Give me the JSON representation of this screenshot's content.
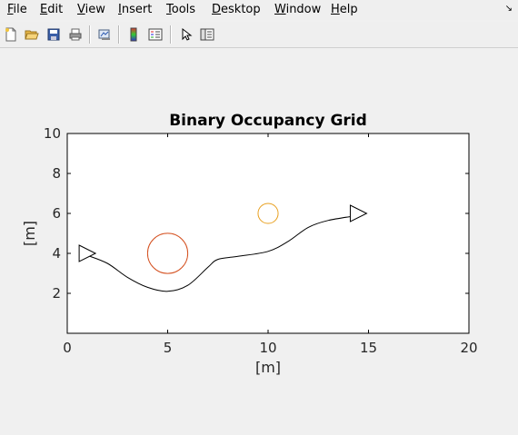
{
  "menu": {
    "file": {
      "first": "F",
      "rest": "ile"
    },
    "edit": {
      "first": "E",
      "rest": "dit"
    },
    "view": {
      "first": "V",
      "rest": "iew"
    },
    "insert": {
      "first": "I",
      "rest": "nsert"
    },
    "tools": {
      "first": "T",
      "rest": "ools"
    },
    "desktop": {
      "first": "D",
      "rest": "esktop"
    },
    "window": {
      "first": "W",
      "rest": "indow"
    },
    "help": {
      "first": "H",
      "rest": "elp"
    },
    "dock_glyph": "↘"
  },
  "toolbar": {
    "icons": [
      "new-figure-icon",
      "open-file-icon",
      "save-icon",
      "print-icon",
      "link-plot-icon",
      "insert-colorbar-icon",
      "insert-legend-icon",
      "edit-plot-arrow-icon",
      "property-inspector-icon"
    ]
  },
  "chart_data": {
    "type": "line",
    "title": "Binary Occupancy Grid",
    "xlabel": "[m]",
    "ylabel": "[m]",
    "xlim": [
      0,
      20
    ],
    "ylim": [
      0,
      10
    ],
    "xticks": [
      "0",
      "5",
      "10",
      "15",
      "20"
    ],
    "yticks": [
      "2",
      "4",
      "6",
      "8",
      "10"
    ],
    "grid": false,
    "path": {
      "x": [
        1,
        2,
        3,
        4,
        5,
        6,
        7,
        7.5,
        8.5,
        10,
        11,
        12,
        13,
        14.5
      ],
      "y": [
        3.9,
        3.5,
        2.8,
        2.3,
        2.1,
        2.4,
        3.3,
        3.7,
        3.85,
        4.1,
        4.6,
        5.3,
        5.65,
        5.9
      ],
      "color": "#000000"
    },
    "start_marker": {
      "x": 1,
      "y": 4,
      "shape": "triangle",
      "direction": "right"
    },
    "goal_marker": {
      "x": 14.5,
      "y": 6,
      "shape": "triangle",
      "direction": "right"
    },
    "obstacles": [
      {
        "x": 5,
        "y": 4,
        "radius": 1,
        "color": "#d4501f"
      },
      {
        "x": 10,
        "y": 6,
        "radius": 0.5,
        "color": "#e8a020"
      }
    ]
  }
}
